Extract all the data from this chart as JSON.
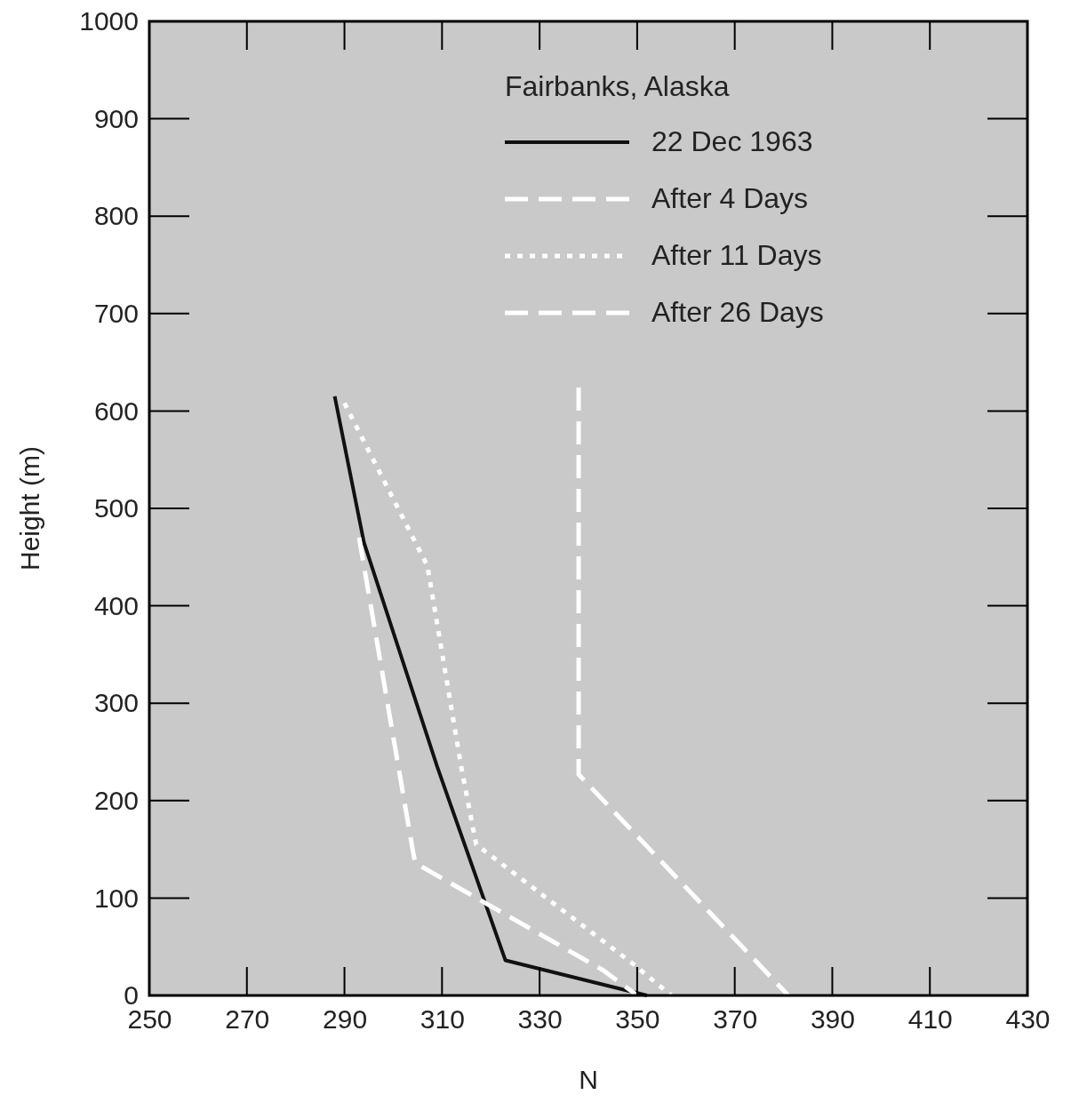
{
  "chart_data": {
    "type": "line",
    "xlabel": "N",
    "ylabel": "Height (m)",
    "legend_title": "Fairbanks, Alaska",
    "legend": "top right",
    "grid": false,
    "xlim": [
      250,
      430
    ],
    "xticks": [
      250,
      270,
      290,
      310,
      330,
      350,
      370,
      390,
      410,
      430
    ],
    "ylim": [
      0,
      1000
    ],
    "yticks": [
      0,
      100,
      200,
      300,
      400,
      500,
      600,
      700,
      800,
      900,
      1000
    ],
    "series": [
      {
        "name": "22 Dec 1963",
        "color": "#111111",
        "line_style": "solid",
        "x": [
          288,
          294,
          309,
          323,
          352
        ],
        "values": [
          615,
          465,
          235,
          36,
          0
        ]
      },
      {
        "name": "After 4 Days",
        "color": "#ffffff",
        "line_style": "dashed",
        "x": [
          293,
          304,
          304.5,
          343,
          350
        ],
        "values": [
          470,
          149,
          136,
          26,
          0
        ]
      },
      {
        "name": "After 11 Days",
        "color": "#ffffff",
        "line_style": "dotted",
        "x": [
          290,
          307,
          314,
          317,
          349,
          357
        ],
        "values": [
          608,
          441,
          233,
          155,
          33,
          0
        ]
      },
      {
        "name": "After 26 Days",
        "color": "#ffffff",
        "line_style": "dashed",
        "x": [
          338,
          338,
          381
        ],
        "values": [
          624,
          227,
          0
        ]
      }
    ]
  }
}
